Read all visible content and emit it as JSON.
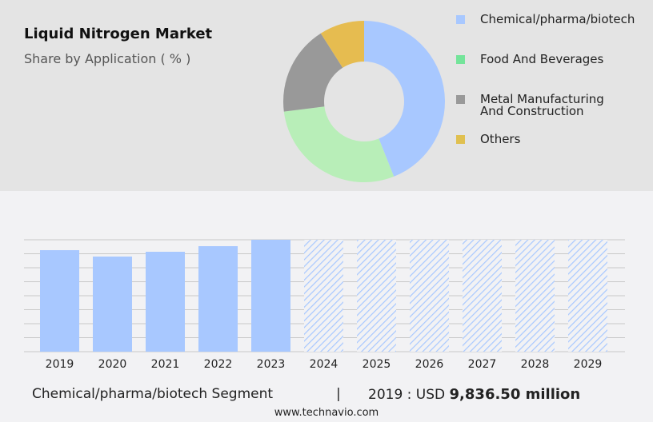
{
  "header": {
    "title": "Liquid Nitrogen Market",
    "subtitle": "Share by Application ( % )"
  },
  "chart_data": [
    {
      "type": "pie",
      "style": "donut",
      "title": "Share by Application ( % )",
      "labels": [
        "Chemical/pharma/biotech",
        "Food And Beverages",
        "Metal Manufacturing And Construction",
        "Others"
      ],
      "values": [
        44,
        29,
        18,
        9
      ],
      "colors": [
        "#a8c8ff",
        "#b8eeb8",
        "#999999",
        "#e6bc50"
      ],
      "legend_colors": [
        "#a8c8ff",
        "#74e49a",
        "#999999",
        "#e0c050"
      ],
      "legend": "right"
    },
    {
      "type": "bar",
      "title": "Chemical/pharma/biotech Segment",
      "categories": [
        "2019",
        "2020",
        "2021",
        "2022",
        "2023",
        "2024",
        "2025",
        "2026",
        "2027",
        "2028",
        "2029"
      ],
      "values": [
        9836.5,
        9217,
        9681,
        10223,
        10843,
        null,
        null,
        null,
        null,
        null,
        null
      ],
      "forecast": [
        false,
        false,
        false,
        false,
        false,
        true,
        true,
        true,
        true,
        true,
        true
      ],
      "ylim": [
        0,
        10843
      ],
      "grid": true,
      "unit": "USD million",
      "color": "#a8c8ff"
    }
  ],
  "footer": {
    "segment": "Chemical/pharma/biotech Segment",
    "separator": "|",
    "year_label": "2019 : USD",
    "value": "9,836.50 million"
  },
  "url": "www.technavio.com"
}
